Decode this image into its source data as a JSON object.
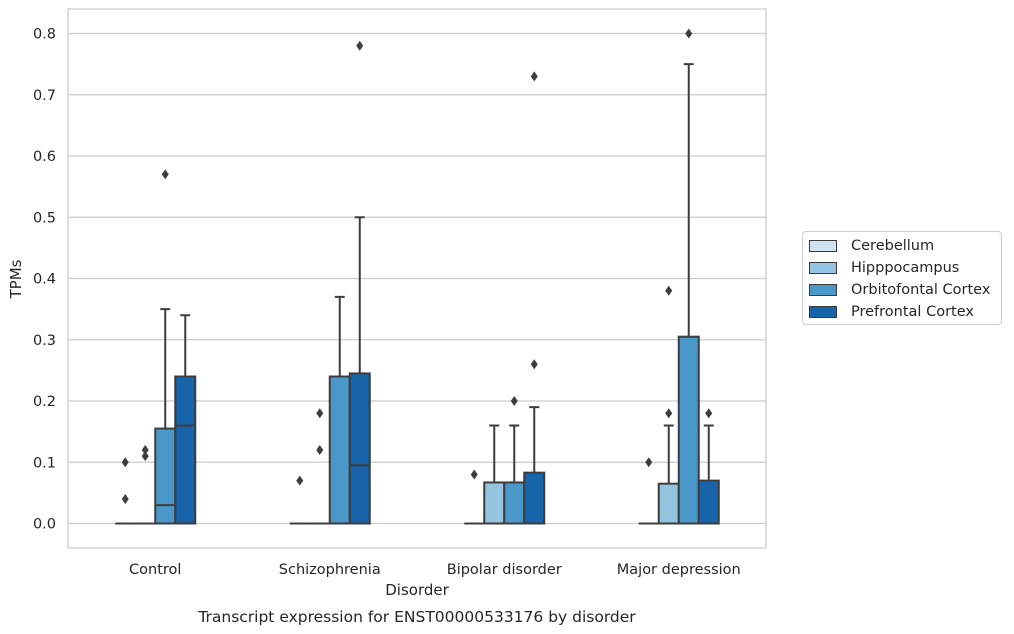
{
  "chart_data": {
    "type": "box",
    "categories": [
      "Control",
      "Schizophrenia",
      "Bipolar disorder",
      "Major depression"
    ],
    "xlabel": "Disorder",
    "ylabel": "TPMs",
    "caption": "Transcript expression for ENST00000533176 by disorder",
    "ylim": [
      -0.04,
      0.84
    ],
    "yticks": [
      0.0,
      0.1,
      0.2,
      0.3,
      0.4,
      0.5,
      0.6,
      0.7,
      0.8
    ],
    "ytick_labels": [
      "0.0",
      "0.1",
      "0.2",
      "0.3",
      "0.4",
      "0.5",
      "0.6",
      "0.7",
      "0.8"
    ],
    "grid": "horizontal",
    "legend_position": "right",
    "series": [
      {
        "name": "Cerebellum",
        "color": "#d0e1f2",
        "boxes": [
          {
            "q1": 0,
            "median": 0,
            "q3": 0,
            "whisker_low": 0,
            "whisker_high": 0,
            "outliers": [
              0.04,
              0.1
            ]
          },
          {
            "q1": 0,
            "median": 0,
            "q3": 0,
            "whisker_low": 0,
            "whisker_high": 0,
            "outliers": [
              0.07
            ]
          },
          {
            "q1": 0,
            "median": 0,
            "q3": 0,
            "whisker_low": 0,
            "whisker_high": 0,
            "outliers": [
              0.08
            ]
          },
          {
            "q1": 0,
            "median": 0,
            "q3": 0,
            "whisker_low": 0,
            "whisker_high": 0,
            "outliers": [
              0.1
            ]
          }
        ]
      },
      {
        "name": "Hipppocampus",
        "color": "#94c4df",
        "boxes": [
          {
            "q1": 0,
            "median": 0,
            "q3": 0,
            "whisker_low": 0,
            "whisker_high": 0,
            "outliers": [
              0.11,
              0.12
            ]
          },
          {
            "q1": 0,
            "median": 0,
            "q3": 0,
            "whisker_low": 0,
            "whisker_high": 0,
            "outliers": [
              0.12,
              0.18
            ]
          },
          {
            "q1": 0,
            "median": 0,
            "q3": 0.067,
            "whisker_low": 0,
            "whisker_high": 0.16,
            "outliers": []
          },
          {
            "q1": 0,
            "median": 0,
            "q3": 0.065,
            "whisker_low": 0,
            "whisker_high": 0.16,
            "outliers": [
              0.18,
              0.38
            ]
          }
        ]
      },
      {
        "name": "Orbitofontal Cortex",
        "color": "#4a98c9",
        "boxes": [
          {
            "q1": 0,
            "median": 0.03,
            "q3": 0.155,
            "whisker_low": 0,
            "whisker_high": 0.35,
            "outliers": [
              0.57
            ]
          },
          {
            "q1": 0,
            "median": 0,
            "q3": 0.24,
            "whisker_low": 0,
            "whisker_high": 0.37,
            "outliers": []
          },
          {
            "q1": 0,
            "median": 0,
            "q3": 0.067,
            "whisker_low": 0,
            "whisker_high": 0.16,
            "outliers": [
              0.2
            ]
          },
          {
            "q1": 0,
            "median": 0,
            "q3": 0.305,
            "whisker_low": 0,
            "whisker_high": 0.75,
            "outliers": [
              0.8
            ]
          }
        ]
      },
      {
        "name": "Prefrontal Cortex",
        "color": "#1764ab",
        "boxes": [
          {
            "q1": 0,
            "median": 0.16,
            "q3": 0.24,
            "whisker_low": 0,
            "whisker_high": 0.34,
            "outliers": []
          },
          {
            "q1": 0,
            "median": 0.095,
            "q3": 0.245,
            "whisker_low": 0,
            "whisker_high": 0.5,
            "outliers": [
              0.78
            ]
          },
          {
            "q1": 0,
            "median": 0,
            "q3": 0.083,
            "whisker_low": 0,
            "whisker_high": 0.19,
            "outliers": [
              0.26,
              0.73
            ]
          },
          {
            "q1": 0,
            "median": 0,
            "q3": 0.07,
            "whisker_low": 0,
            "whisker_high": 0.16,
            "outliers": [
              0.18
            ]
          }
        ]
      }
    ]
  }
}
